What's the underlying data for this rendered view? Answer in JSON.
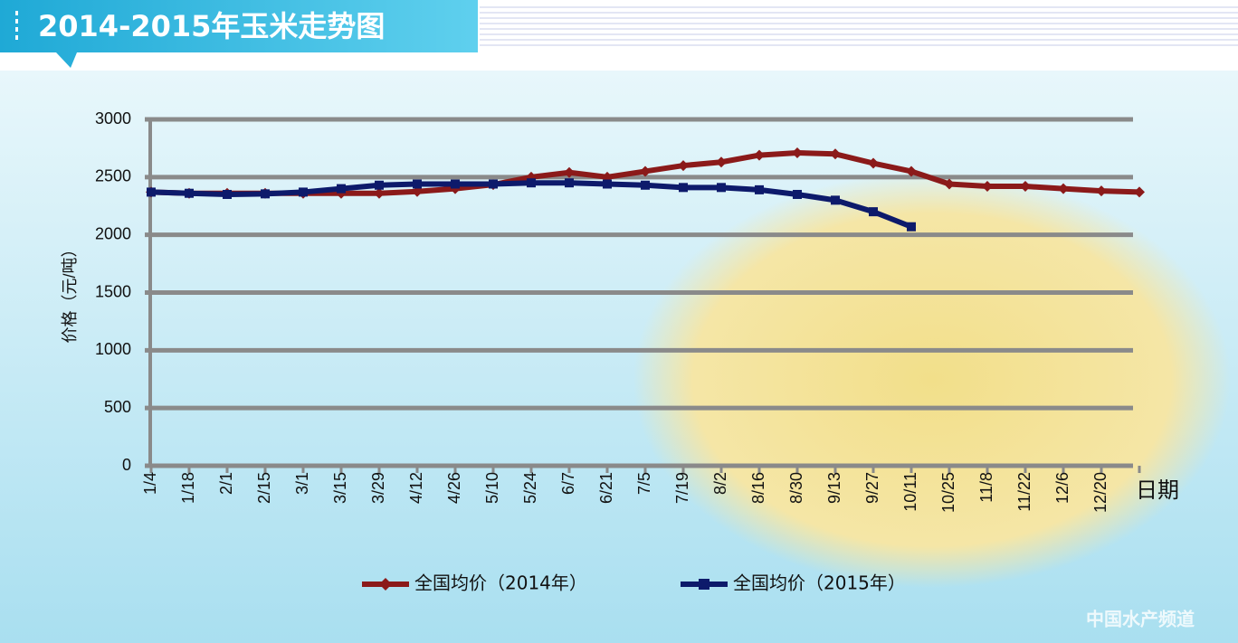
{
  "header": {
    "title": "2014-2015年玉米走势图"
  },
  "chart_data": {
    "type": "line",
    "ylabel": "价格（元/吨）",
    "xlabel": "日期",
    "categories": [
      "1/4",
      "1/18",
      "2/1",
      "2/15",
      "3/1",
      "3/15",
      "3/29",
      "4/12",
      "4/26",
      "5/10",
      "5/24",
      "6/7",
      "6/21",
      "7/5",
      "7/19",
      "8/2",
      "8/16",
      "8/30",
      "9/13",
      "9/27",
      "10/11",
      "10/25",
      "11/8",
      "11/22",
      "12/6",
      "12/20",
      null
    ],
    "series": [
      {
        "name": "全国均价（2014年）",
        "color": "#8b1a1a",
        "values": [
          2370,
          2360,
          2360,
          2360,
          2360,
          2360,
          2360,
          2375,
          2400,
          2435,
          2500,
          2540,
          2500,
          2550,
          2600,
          2630,
          2690,
          2710,
          2700,
          2620,
          2550,
          2440,
          2420,
          2420,
          2400,
          2380,
          2370
        ]
      },
      {
        "name": "全国均价（2015年）",
        "color": "#0d1a6b",
        "values": [
          2370,
          2360,
          2350,
          2355,
          2370,
          2400,
          2430,
          2440,
          2440,
          2440,
          2450,
          2450,
          2440,
          2430,
          2410,
          2410,
          2390,
          2350,
          2300,
          2200,
          2070,
          null,
          null,
          null,
          null,
          null,
          null
        ]
      }
    ],
    "ylim": [
      0,
      3000
    ],
    "yticks": [
      0,
      500,
      1000,
      1500,
      2000,
      2500,
      3000
    ],
    "grid": true
  },
  "footer": {
    "watermark": "中国水产频道"
  }
}
